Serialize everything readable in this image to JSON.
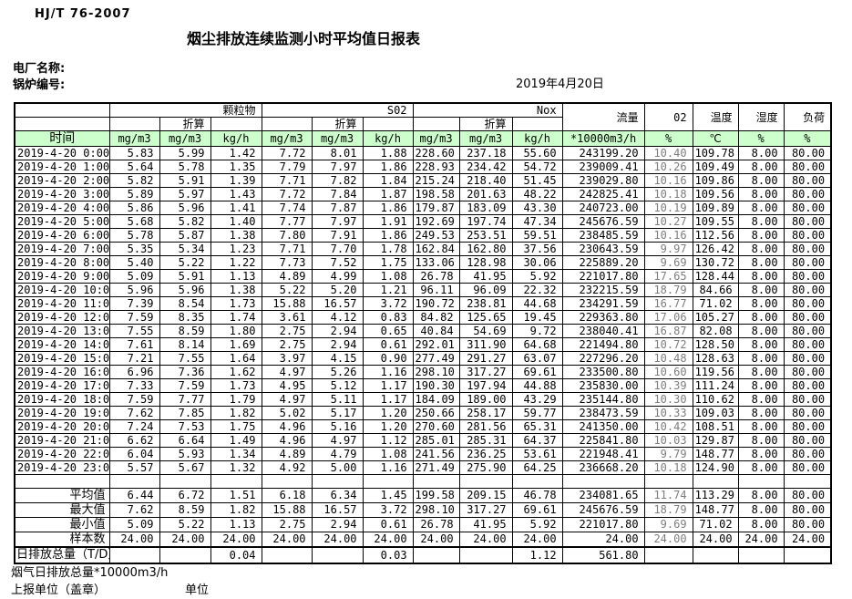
{
  "header": {
    "standard": "HJ/T  76-2007",
    "title": "烟尘排放连续监测小时平均值日报表",
    "plant_label": "电厂名称:",
    "boiler_label": "锅炉编号:",
    "date": "2019年4月20日"
  },
  "table": {
    "groups": [
      "颗粒物",
      "S02",
      "Nox"
    ],
    "conv_label": "折算",
    "flow_label": "流量",
    "o2_label": "02",
    "temp_label": "温度",
    "humidity_label": "湿度",
    "load_label": "负荷",
    "time_label": "时间",
    "units": [
      "mg/m3",
      "mg/m3",
      "kg/h",
      "mg/m3",
      "mg/m3",
      "kg/h",
      "mg/m3",
      "mg/m3",
      "kg/h",
      "*10000m3/h",
      "%",
      "℃",
      "%",
      "%"
    ],
    "rows": [
      {
        "time": "2019-4-20  0:00",
        "values": [
          "5.83",
          "5.99",
          "1.42",
          "7.72",
          "8.01",
          "1.88",
          "228.60",
          "237.18",
          "55.60",
          "243199.20",
          "10.40",
          "109.78",
          "8.00",
          "80.00"
        ]
      },
      {
        "time": "2019-4-20  1:00",
        "values": [
          "5.64",
          "5.78",
          "1.35",
          "7.79",
          "7.97",
          "1.86",
          "228.93",
          "234.42",
          "54.72",
          "239009.41",
          "10.26",
          "109.49",
          "8.00",
          "80.00"
        ]
      },
      {
        "time": "2019-4-20  2:00",
        "values": [
          "5.82",
          "5.91",
          "1.39",
          "7.71",
          "7.82",
          "1.84",
          "215.24",
          "218.40",
          "51.45",
          "239029.80",
          "10.16",
          "109.86",
          "8.00",
          "80.00"
        ]
      },
      {
        "time": "2019-4-20  3:00",
        "values": [
          "5.89",
          "5.97",
          "1.43",
          "7.72",
          "7.84",
          "1.87",
          "198.58",
          "201.63",
          "48.22",
          "242825.41",
          "10.18",
          "109.56",
          "8.00",
          "80.00"
        ]
      },
      {
        "time": "2019-4-20  4:00",
        "values": [
          "5.86",
          "5.96",
          "1.41",
          "7.74",
          "7.87",
          "1.86",
          "179.87",
          "183.09",
          "43.30",
          "240723.00",
          "10.19",
          "109.89",
          "8.00",
          "80.00"
        ]
      },
      {
        "time": "2019-4-20  5:00",
        "values": [
          "5.68",
          "5.82",
          "1.40",
          "7.77",
          "7.97",
          "1.91",
          "192.69",
          "197.74",
          "47.34",
          "245676.59",
          "10.27",
          "109.55",
          "8.00",
          "80.00"
        ]
      },
      {
        "time": "2019-4-20  6:00",
        "values": [
          "5.78",
          "5.87",
          "1.38",
          "7.80",
          "7.91",
          "1.86",
          "249.53",
          "253.51",
          "59.51",
          "238485.59",
          "10.16",
          "112.56",
          "8.00",
          "80.00"
        ]
      },
      {
        "time": "2019-4-20  7:00",
        "values": [
          "5.35",
          "5.34",
          "1.23",
          "7.71",
          "7.70",
          "1.78",
          "162.84",
          "162.80",
          "37.56",
          "230643.59",
          "9.97",
          "126.42",
          "8.00",
          "80.00"
        ]
      },
      {
        "time": "2019-4-20  8:00",
        "values": [
          "5.40",
          "5.22",
          "1.22",
          "7.73",
          "7.52",
          "1.75",
          "133.06",
          "128.98",
          "30.06",
          "225889.20",
          "9.69",
          "130.72",
          "8.00",
          "80.00"
        ]
      },
      {
        "time": "2019-4-20  9:00",
        "values": [
          "5.09",
          "5.91",
          "1.13",
          "4.89",
          "4.99",
          "1.08",
          "26.78",
          "41.95",
          "5.92",
          "221017.80",
          "17.65",
          "128.44",
          "8.00",
          "80.00"
        ]
      },
      {
        "time": "2019-4-20 10:00",
        "values": [
          "5.96",
          "5.96",
          "1.38",
          "5.22",
          "5.20",
          "1.21",
          "96.11",
          "96.09",
          "22.32",
          "232215.59",
          "18.79",
          "84.66",
          "8.00",
          "80.00"
        ]
      },
      {
        "time": "2019-4-20 11:00",
        "values": [
          "7.39",
          "8.54",
          "1.73",
          "15.88",
          "16.57",
          "3.72",
          "190.72",
          "238.81",
          "44.68",
          "234291.59",
          "16.77",
          "71.02",
          "8.00",
          "80.00"
        ]
      },
      {
        "time": "2019-4-20 12:00",
        "values": [
          "7.59",
          "8.35",
          "1.74",
          "3.61",
          "4.12",
          "0.83",
          "84.82",
          "125.65",
          "19.45",
          "229363.80",
          "17.06",
          "105.27",
          "8.00",
          "80.00"
        ]
      },
      {
        "time": "2019-4-20 13:00",
        "values": [
          "7.55",
          "8.59",
          "1.80",
          "2.75",
          "2.94",
          "0.65",
          "40.84",
          "54.69",
          "9.72",
          "238040.41",
          "16.87",
          "82.08",
          "8.00",
          "80.00"
        ]
      },
      {
        "time": "2019-4-20 14:00",
        "values": [
          "7.61",
          "8.14",
          "1.69",
          "2.75",
          "2.94",
          "0.61",
          "292.01",
          "311.90",
          "64.68",
          "221494.80",
          "10.72",
          "128.50",
          "8.00",
          "80.00"
        ]
      },
      {
        "time": "2019-4-20 15:00",
        "values": [
          "7.21",
          "7.55",
          "1.64",
          "3.97",
          "4.15",
          "0.90",
          "277.49",
          "291.27",
          "63.07",
          "227296.20",
          "10.48",
          "128.63",
          "8.00",
          "80.00"
        ]
      },
      {
        "time": "2019-4-20 16:00",
        "values": [
          "6.96",
          "7.36",
          "1.62",
          "4.97",
          "5.26",
          "1.16",
          "298.10",
          "317.27",
          "69.61",
          "233500.80",
          "10.60",
          "119.56",
          "8.00",
          "80.00"
        ]
      },
      {
        "time": "2019-4-20 17:00",
        "values": [
          "7.33",
          "7.59",
          "1.73",
          "4.95",
          "5.12",
          "1.17",
          "190.30",
          "197.94",
          "44.88",
          "235830.00",
          "10.39",
          "111.24",
          "8.00",
          "80.00"
        ]
      },
      {
        "time": "2019-4-20 18:00",
        "values": [
          "7.59",
          "7.77",
          "1.79",
          "4.97",
          "5.11",
          "1.17",
          "184.09",
          "189.00",
          "43.29",
          "235144.80",
          "10.30",
          "110.62",
          "8.00",
          "80.00"
        ]
      },
      {
        "time": "2019-4-20 19:00",
        "values": [
          "7.62",
          "7.85",
          "1.82",
          "5.02",
          "5.17",
          "1.20",
          "250.66",
          "258.17",
          "59.77",
          "238473.59",
          "10.33",
          "109.03",
          "8.00",
          "80.00"
        ]
      },
      {
        "time": "2019-4-20 20:00",
        "values": [
          "7.24",
          "7.53",
          "1.75",
          "4.96",
          "5.16",
          "1.20",
          "270.60",
          "281.56",
          "65.31",
          "241350.00",
          "10.42",
          "108.51",
          "8.00",
          "80.00"
        ]
      },
      {
        "time": "2019-4-20 21:00",
        "values": [
          "6.62",
          "6.64",
          "1.49",
          "4.96",
          "4.97",
          "1.12",
          "285.01",
          "285.31",
          "64.37",
          "225841.80",
          "10.03",
          "129.87",
          "8.00",
          "80.00"
        ]
      },
      {
        "time": "2019-4-20 22:00",
        "values": [
          "6.04",
          "5.93",
          "1.34",
          "4.89",
          "4.79",
          "1.08",
          "241.56",
          "236.25",
          "53.61",
          "221948.41",
          "9.79",
          "148.77",
          "8.00",
          "80.00"
        ]
      },
      {
        "time": "2019-4-20 23:00",
        "values": [
          "5.57",
          "5.67",
          "1.32",
          "4.92",
          "5.00",
          "1.16",
          "271.49",
          "275.90",
          "64.25",
          "236668.20",
          "10.18",
          "124.90",
          "8.00",
          "80.00"
        ]
      }
    ],
    "summary": [
      {
        "label": "平均值",
        "values": [
          "6.44",
          "6.72",
          "1.51",
          "6.18",
          "6.34",
          "1.45",
          "199.58",
          "209.15",
          "46.78",
          "234081.65",
          "11.74",
          "113.29",
          "8.00",
          "80.00"
        ]
      },
      {
        "label": "最大值",
        "values": [
          "7.62",
          "8.59",
          "1.82",
          "15.88",
          "16.57",
          "3.72",
          "298.10",
          "317.27",
          "69.61",
          "245676.59",
          "18.79",
          "148.77",
          "8.00",
          "80.00"
        ]
      },
      {
        "label": "最小值",
        "values": [
          "5.09",
          "5.22",
          "1.13",
          "2.75",
          "2.94",
          "0.61",
          "26.78",
          "41.95",
          "5.92",
          "221017.80",
          "9.69",
          "71.02",
          "8.00",
          "80.00"
        ]
      },
      {
        "label": "样本数",
        "values": [
          "24.00",
          "24.00",
          "24.00",
          "24.00",
          "24.00",
          "24.00",
          "24.00",
          "24.00",
          "24.00",
          "24.00",
          "24.00",
          "24.00",
          "24.00",
          "24.00"
        ]
      }
    ],
    "total_row": {
      "label": "日排放总量（T/D）",
      "values": [
        "",
        "",
        "0.04",
        "",
        "",
        "0.03",
        "",
        "",
        "1.12",
        "561.80",
        "",
        "",
        "",
        ""
      ]
    }
  },
  "footer": {
    "flue_total_label": "烟气日排放总量*10000m3/h",
    "report_unit_label": "上报单位（盖章）",
    "unit_label": "单位"
  }
}
